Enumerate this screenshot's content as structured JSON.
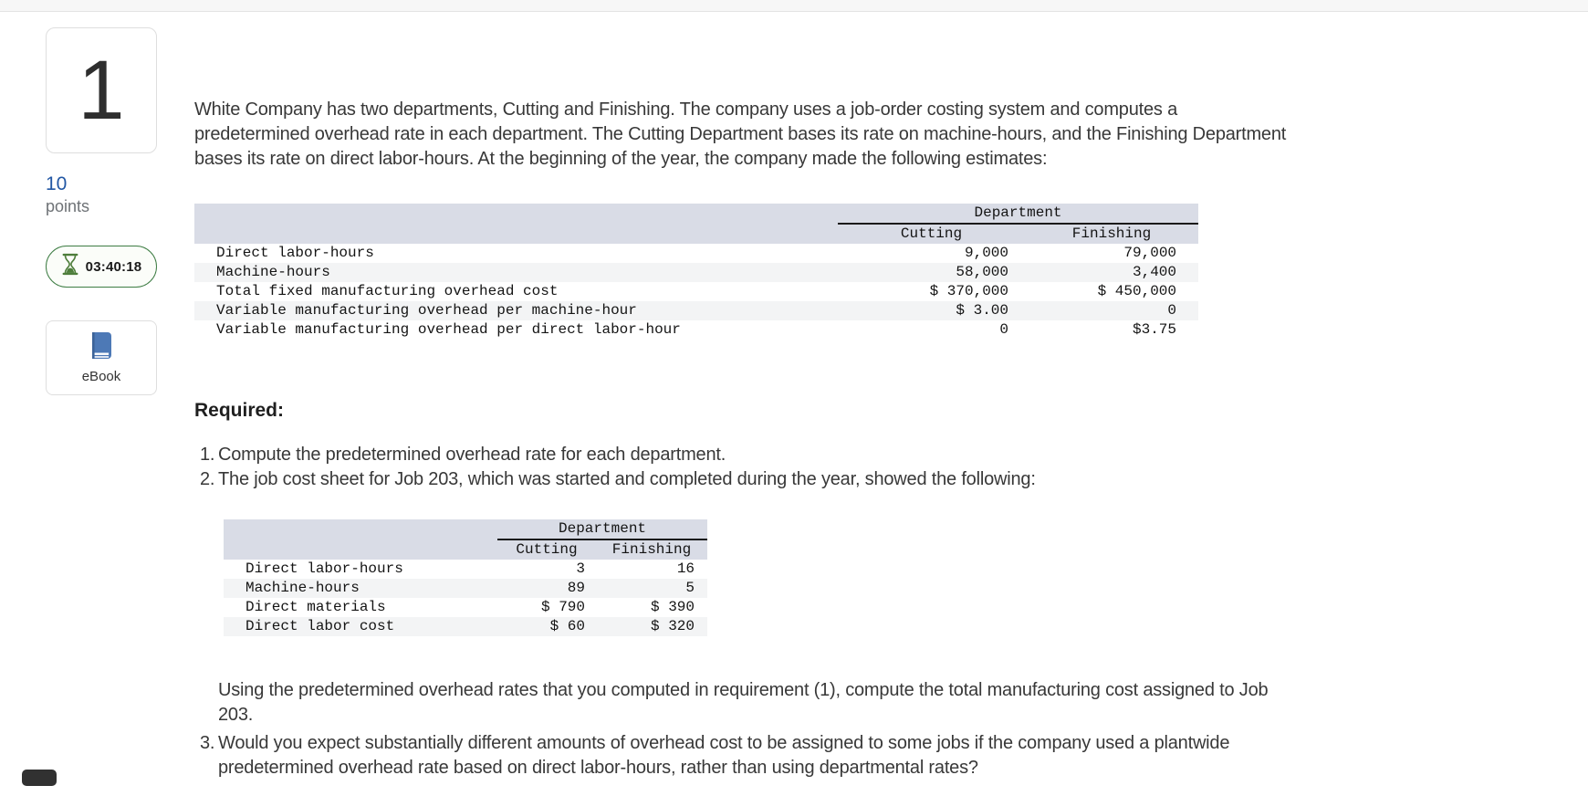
{
  "sidebar": {
    "question_number": "1",
    "points_value": "10",
    "points_label": "points",
    "timer": {
      "icon": "hourglass-icon",
      "time": "03:40:18"
    },
    "ebook": {
      "icon": "book-icon",
      "label": "eBook"
    }
  },
  "colors": {
    "accent_blue": "#2257a4",
    "timer_green": "#3e7d44",
    "book_blue": "#4d79b6",
    "table_header_bg": "#d9dce6",
    "table_stripe": "#f3f4f5"
  },
  "main": {
    "intro": "White Company has two departments, Cutting and Finishing. The company uses a job-order costing system and computes a predetermined overhead rate in each department. The Cutting Department bases its rate on machine-hours, and the Finishing Department bases its rate on direct labor-hours. At the beginning of the year, the company made the following estimates:",
    "required_label": "Required:",
    "items": [
      {
        "num": "1.",
        "text": "Compute the predetermined overhead rate for each department."
      },
      {
        "num": "2.",
        "text": "The job cost sheet for Job 203, which was started and completed during the year, showed the following:"
      },
      {
        "num": "",
        "text": "Using the predetermined overhead rates that you computed in requirement (1), compute the total manufacturing cost assigned to Job 203."
      },
      {
        "num": "3.",
        "text": "Would you expect substantially different amounts of overhead cost to be assigned to some jobs if the company used a plantwide predetermined overhead rate based on direct labor-hours, rather than using departmental rates?"
      }
    ]
  },
  "estimates_table": {
    "group_header": "Department",
    "columns": [
      "Cutting",
      "Finishing"
    ],
    "rows": [
      {
        "label": "Direct labor-hours",
        "cutting": "9,000",
        "finishing": "79,000"
      },
      {
        "label": "Machine-hours",
        "cutting": "58,000",
        "finishing": "3,400"
      },
      {
        "label": "Total fixed manufacturing overhead cost",
        "cutting": "$ 370,000",
        "finishing": "$ 450,000"
      },
      {
        "label": "Variable manufacturing overhead per machine-hour",
        "cutting": "$ 3.00",
        "finishing": "0"
      },
      {
        "label": "Variable manufacturing overhead per direct labor-hour",
        "cutting": "0",
        "finishing": "$3.75"
      }
    ]
  },
  "job_table": {
    "group_header": "Department",
    "columns": [
      "Cutting",
      "Finishing"
    ],
    "rows": [
      {
        "label": "Direct labor-hours",
        "cutting": "3",
        "finishing": "16"
      },
      {
        "label": "Machine-hours",
        "cutting": "89",
        "finishing": "5"
      },
      {
        "label": "Direct materials",
        "cutting": "$ 790",
        "finishing": "$ 390"
      },
      {
        "label": "Direct labor cost",
        "cutting": "$ 60",
        "finishing": "$ 320"
      }
    ]
  }
}
